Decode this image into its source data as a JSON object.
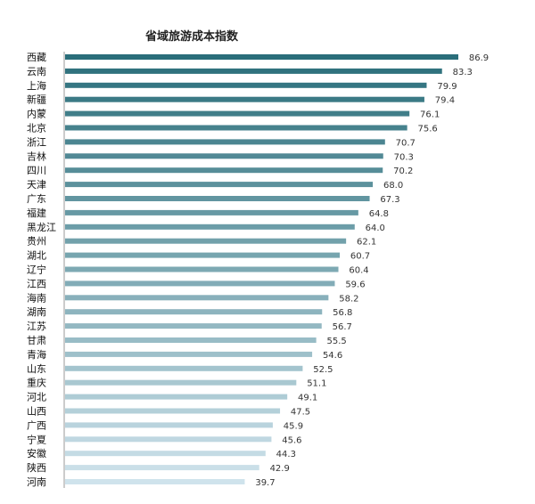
{
  "chart_data": {
    "type": "bar",
    "orientation": "horizontal",
    "title": "省域旅游成本指数",
    "xlabel": "",
    "ylabel": "",
    "xlim": [
      0,
      90
    ],
    "grid": false,
    "legend": "none",
    "categories": [
      "西藏",
      "云南",
      "上海",
      "新疆",
      "内蒙",
      "北京",
      "浙江",
      "吉林",
      "四川",
      "天津",
      "广东",
      "福建",
      "黑龙江",
      "贵州",
      "湖北",
      "辽宁",
      "江西",
      "海南",
      "湖南",
      "江苏",
      "甘肃",
      "青海",
      "山东",
      "重庆",
      "河北",
      "山西",
      "广西",
      "宁夏",
      "安徽",
      "陕西",
      "河南"
    ],
    "values": [
      86.9,
      83.3,
      79.9,
      79.4,
      76.1,
      75.6,
      70.7,
      70.3,
      70.2,
      68.0,
      67.3,
      64.8,
      64.0,
      62.1,
      60.7,
      60.4,
      59.6,
      58.2,
      56.8,
      56.7,
      55.5,
      54.6,
      52.5,
      51.1,
      49.1,
      47.5,
      45.9,
      45.6,
      44.3,
      42.9,
      39.7
    ],
    "value_labels": [
      "86.9",
      "83.3",
      "79.9",
      "79.4",
      "76.1",
      "75.6",
      "70.7",
      "70.3",
      "70.2",
      "68.0",
      "67.3",
      "64.8",
      "64.0",
      "62.1",
      "60.7",
      "60.4",
      "59.6",
      "58.2",
      "56.8",
      "56.7",
      "55.5",
      "54.6",
      "52.5",
      "51.1",
      "49.1",
      "47.5",
      "45.9",
      "45.6",
      "44.3",
      "42.9",
      "39.7"
    ],
    "color_gradient": [
      "#2a6e7a",
      "#cfe3ec"
    ]
  }
}
